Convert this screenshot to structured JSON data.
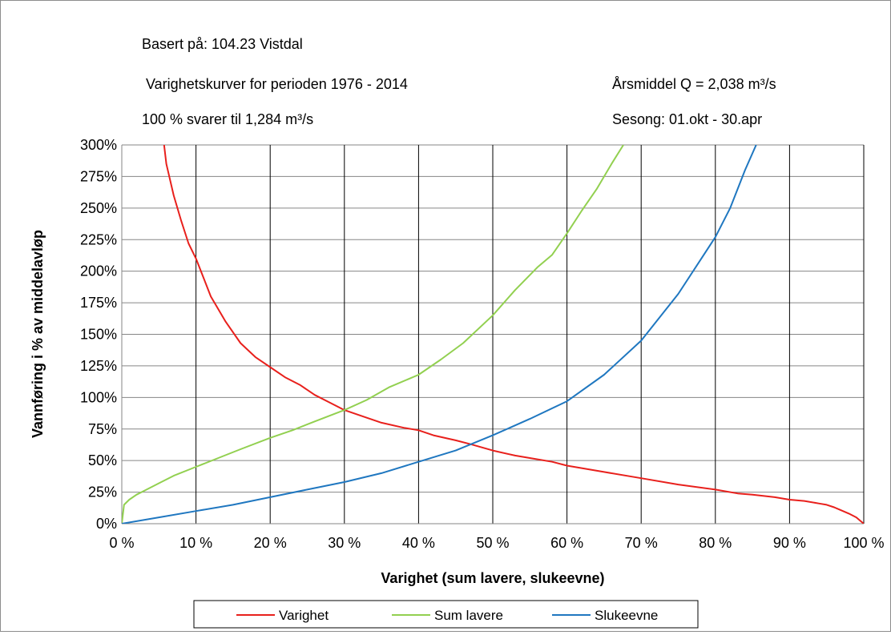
{
  "info": {
    "basis": "Basert på: 104.23  Vistdal",
    "period": "Varighetskurver for perioden 1976 - 2014",
    "hundred_pct": "100 % svarer til 1,284 m³/s",
    "annual_mean": "Årsmiddel Q = 2,038 m³/s",
    "season": "Sesong: 01.okt - 30.apr"
  },
  "chart_data": {
    "type": "line",
    "title": "",
    "xlabel": "Varighet (sum lavere, slukeevne)",
    "ylabel": "Vannføring i % av middelavløp",
    "xlim": [
      0,
      100
    ],
    "ylim": [
      0,
      300
    ],
    "x_ticks": [
      0,
      10,
      20,
      30,
      40,
      50,
      60,
      70,
      80,
      90,
      100
    ],
    "x_tick_labels": [
      "0 %",
      "10 %",
      "20 %",
      "30 %",
      "40 %",
      "50 %",
      "60 %",
      "70 %",
      "80 %",
      "90 %",
      "100 %"
    ],
    "y_ticks": [
      0,
      25,
      50,
      75,
      100,
      125,
      150,
      175,
      200,
      225,
      250,
      275,
      300
    ],
    "y_tick_labels": [
      "0%",
      "25%",
      "50%",
      "75%",
      "100%",
      "125%",
      "150%",
      "175%",
      "200%",
      "225%",
      "250%",
      "275%",
      "300%"
    ],
    "grid": "vertical and horizontal",
    "legend_position": "bottom",
    "series": [
      {
        "name": "Varighet",
        "color": "#e8201c",
        "x": [
          5.7,
          6,
          7,
          8,
          9,
          10,
          11,
          12,
          14,
          16,
          18,
          20,
          22,
          24,
          26,
          28,
          30,
          32,
          35,
          38,
          40,
          42,
          45,
          47,
          50,
          53,
          55,
          58,
          60,
          65,
          70,
          75,
          80,
          83,
          85,
          88,
          90,
          92,
          94,
          95,
          96,
          98,
          99,
          100
        ],
        "y": [
          300,
          285,
          260,
          240,
          222,
          210,
          195,
          180,
          160,
          143,
          132,
          124,
          116,
          110,
          102,
          96,
          90,
          86,
          80,
          76,
          74,
          70,
          66,
          63,
          58,
          54,
          52,
          49,
          46,
          41,
          36,
          31,
          27,
          24,
          23,
          21,
          19,
          18,
          16,
          15,
          13,
          8,
          5,
          0
        ]
      },
      {
        "name": "Sum lavere",
        "color": "#92d050",
        "x": [
          0,
          0.3,
          1,
          2,
          3,
          5,
          7,
          10,
          13,
          16,
          20,
          23,
          26,
          30,
          33,
          36,
          40,
          43,
          46,
          50,
          53,
          56,
          58,
          60,
          62,
          64,
          66,
          67.6
        ],
        "y": [
          0,
          15,
          19,
          23,
          26,
          32,
          38,
          45,
          52,
          59,
          68,
          74,
          81,
          90,
          98,
          108,
          118,
          130,
          143,
          165,
          185,
          203,
          213,
          230,
          248,
          265,
          285,
          300
        ]
      },
      {
        "name": "Slukeevne",
        "color": "#1f77c0",
        "x": [
          0,
          5,
          10,
          15,
          20,
          25,
          30,
          35,
          40,
          45,
          50,
          55,
          60,
          65,
          70,
          75,
          80,
          82,
          84,
          85.5
        ],
        "y": [
          0,
          5,
          10,
          15,
          21,
          27,
          33,
          40,
          49,
          58,
          70,
          83,
          97,
          118,
          145,
          182,
          227,
          250,
          280,
          300
        ]
      }
    ]
  }
}
